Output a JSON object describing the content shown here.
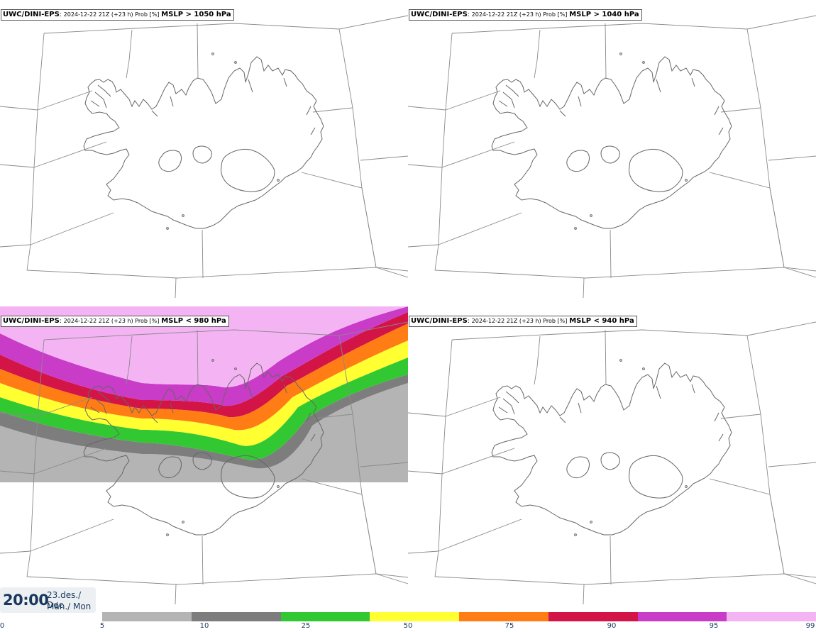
{
  "panels": [
    {
      "id": "p1",
      "model": "UWC/DINI-EPS",
      "run": "2024-12-22 21Z (+23 h) Prob [%]",
      "param": "MSLP > 1050 hPa",
      "has_field": false
    },
    {
      "id": "p2",
      "model": "UWC/DINI-EPS",
      "run": "2024-12-22 21Z (+23 h) Prob [%]",
      "param": "MSLP > 1040 hPa",
      "has_field": false
    },
    {
      "id": "p3",
      "model": "UWC/DINI-EPS",
      "run": "2024-12-22 21Z (+23 h) Prob [%]",
      "param": "MSLP < 980 hPa",
      "has_field": true
    },
    {
      "id": "p4",
      "model": "UWC/DINI-EPS",
      "run": "2024-12-22 21Z (+23 h) Prob [%]",
      "param": "MSLP < 940 hPa",
      "has_field": false
    }
  ],
  "footer": {
    "time": "20:00",
    "date_line1": "23.des./ Dec",
    "date_line2": "Mán./ Mon"
  },
  "colorbar": {
    "ticks": [
      "0",
      "5",
      "10",
      "25",
      "50",
      "75",
      "90",
      "95",
      "99"
    ],
    "colors": [
      "#ffffff",
      "#b4b4b4",
      "#7d7d7d",
      "#32c832",
      "#ffff32",
      "#ff7d14",
      "#d21446",
      "#c83cc8",
      "#f4b4f4"
    ]
  }
}
